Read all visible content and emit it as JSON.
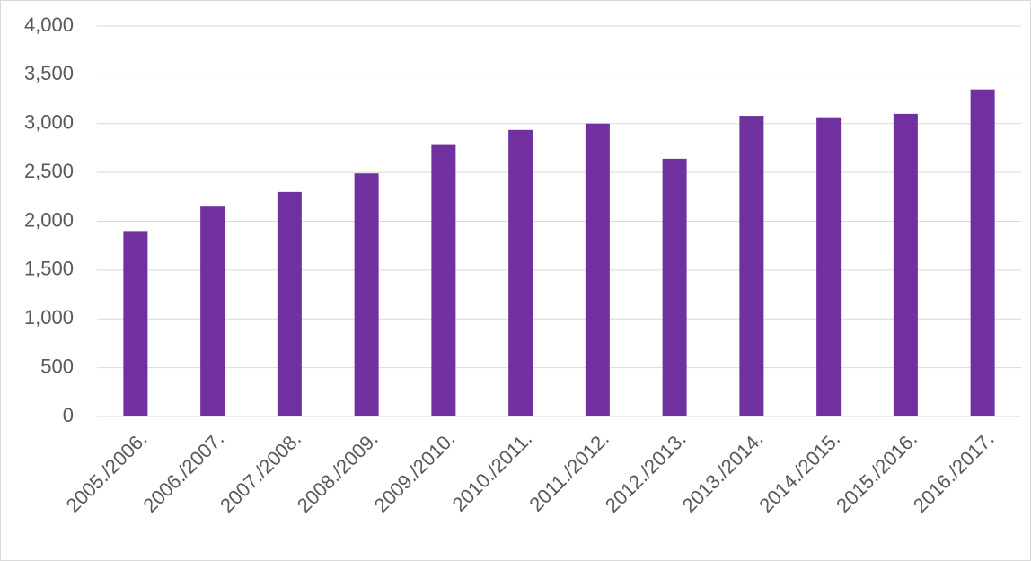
{
  "chart_data": {
    "type": "bar",
    "categories": [
      "2005./2006.",
      "2006./2007.",
      "2007./2008.",
      "2008./2009.",
      "2009./2010.",
      "2010./2011.",
      "2011./2012.",
      "2012./2013.",
      "2013./2014.",
      "2014./2015.",
      "2015./2016.",
      "2016./2017."
    ],
    "values": [
      1900,
      2150,
      2300,
      2490,
      2790,
      2935,
      3000,
      2640,
      3080,
      3065,
      3100,
      3350
    ],
    "color": "#7030a0",
    "ylim": [
      0,
      4000
    ],
    "yticks": [
      0,
      500,
      {
        "value": 1000,
        "label": "1,000"
      },
      {
        "value": 1500,
        "label": "1,500"
      },
      {
        "value": 2000,
        "label": "2,000"
      },
      {
        "value": 2500,
        "label": "2,500"
      },
      {
        "value": 3000,
        "label": "3,000"
      },
      {
        "value": 3500,
        "label": "3,500"
      },
      {
        "value": 4000,
        "label": "4,000"
      }
    ],
    "grid": true
  }
}
